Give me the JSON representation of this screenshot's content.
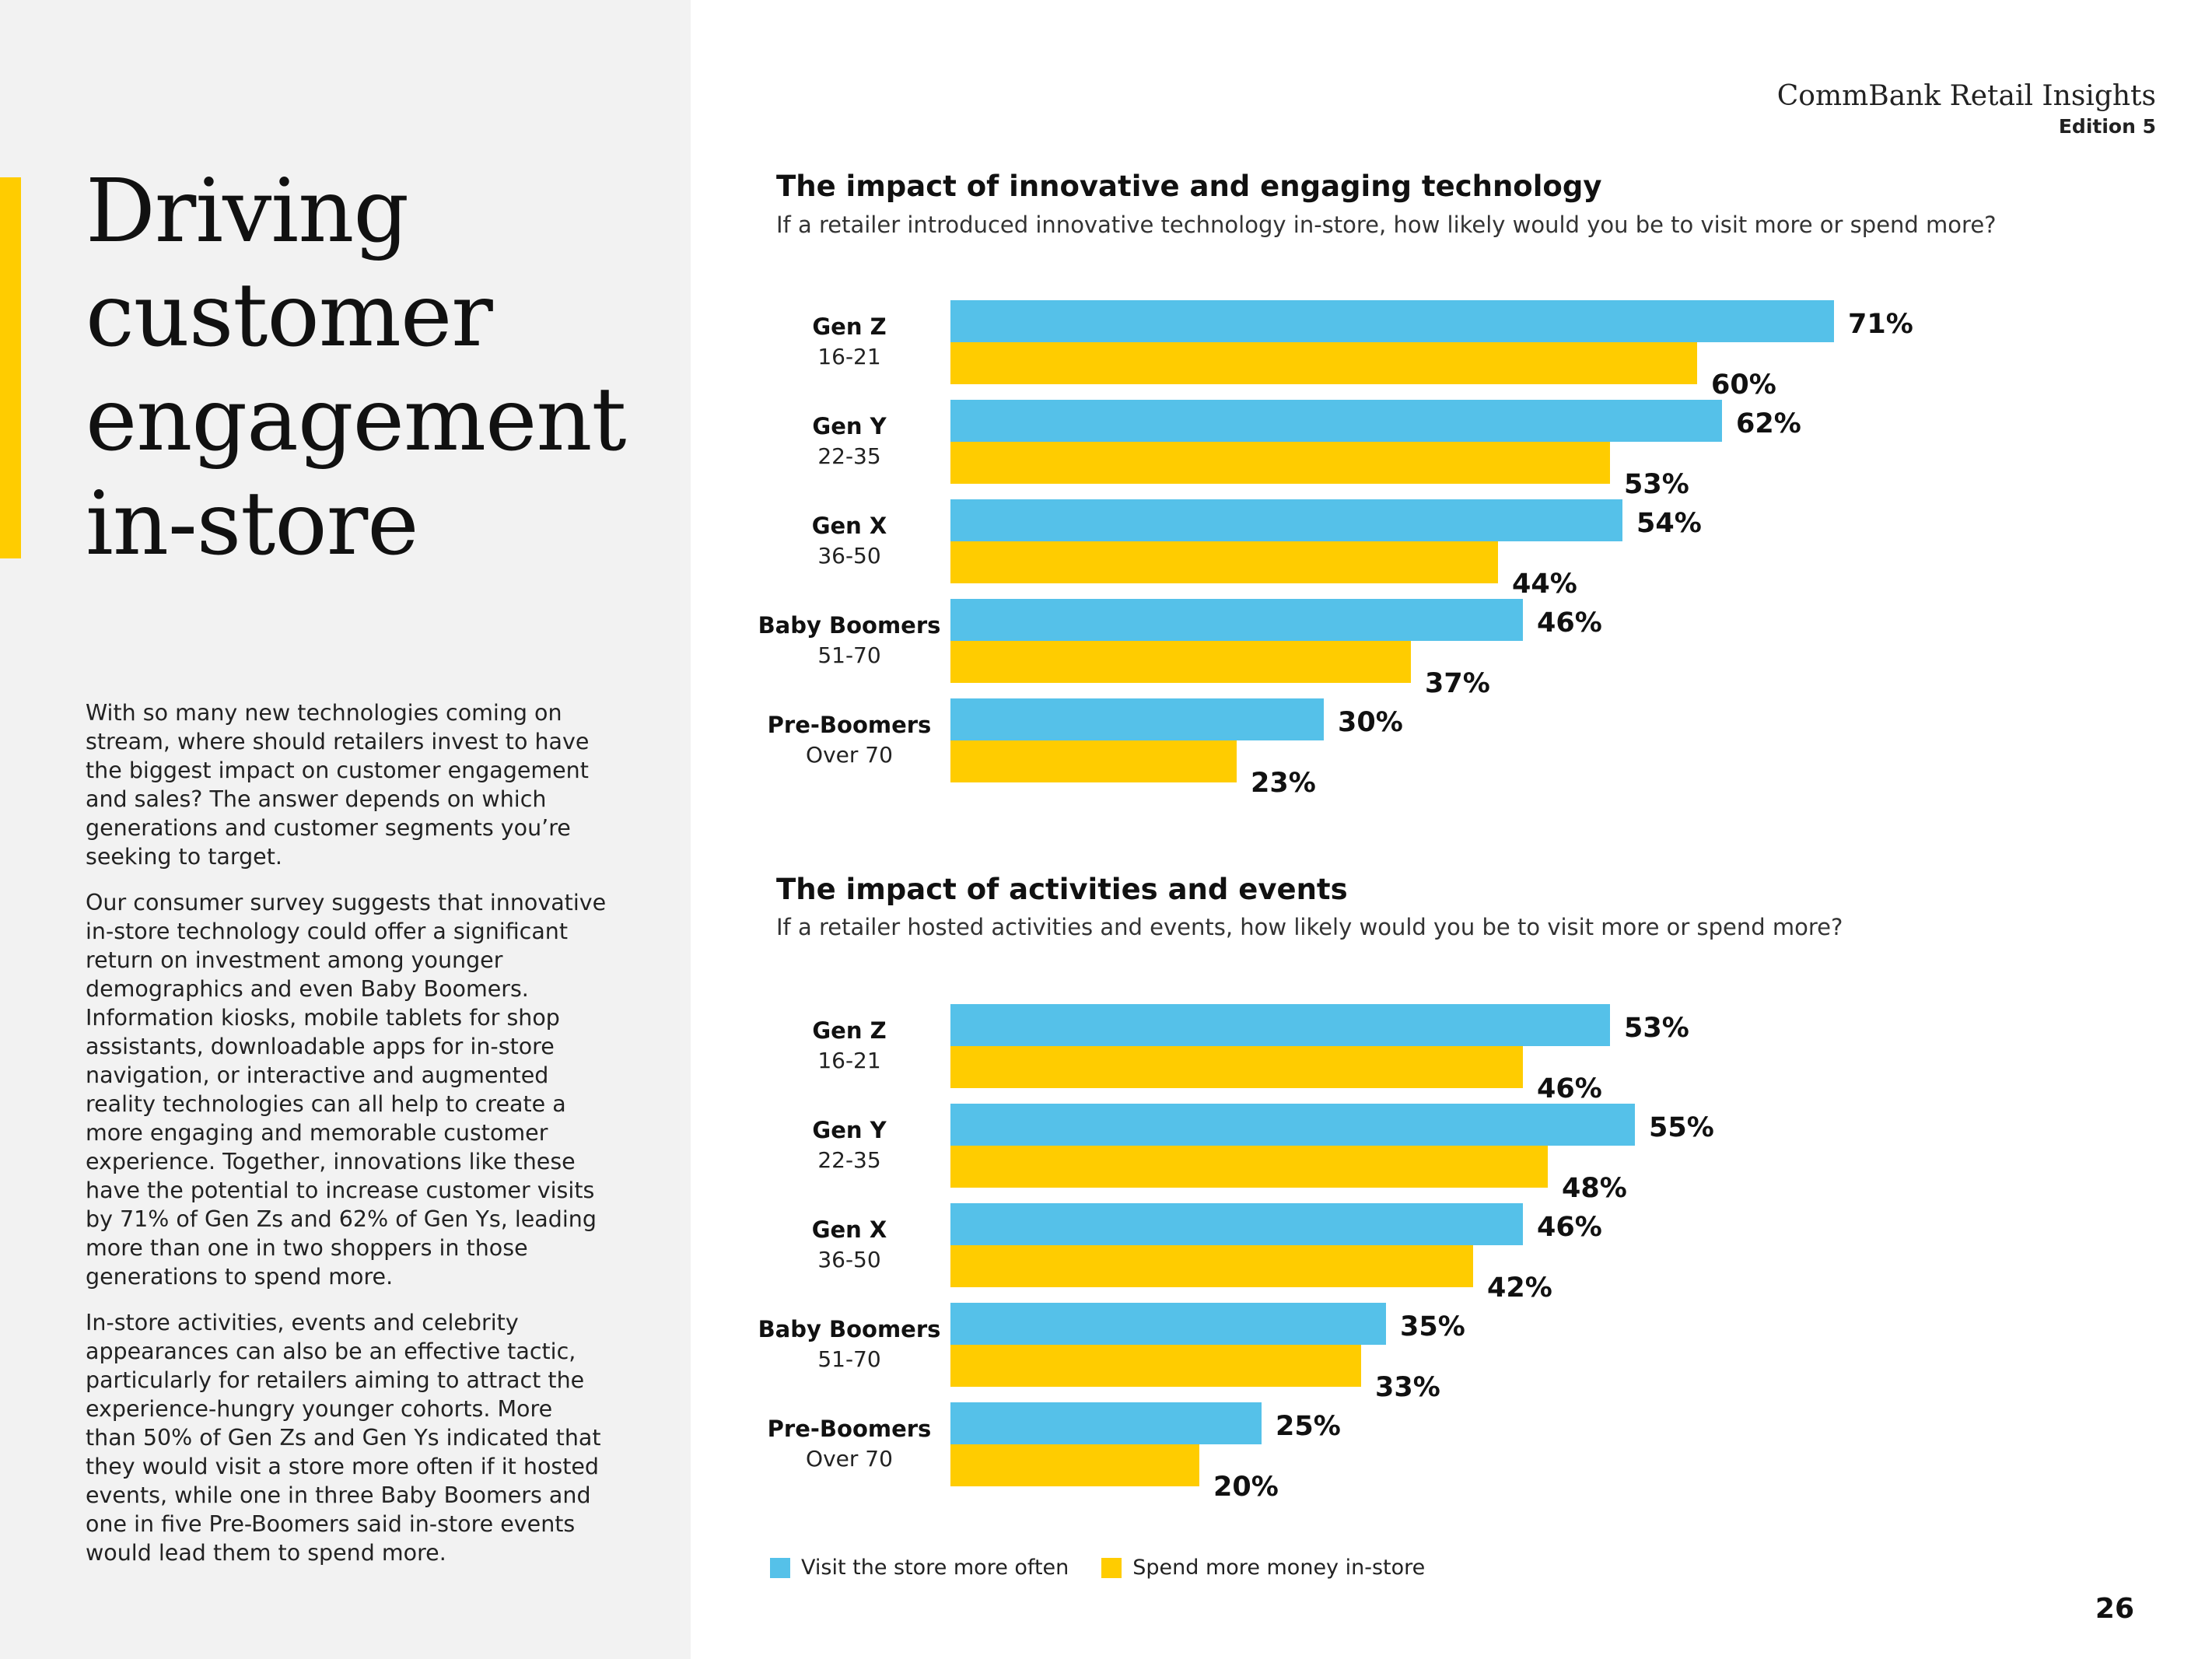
{
  "page": {
    "brand_name": "CommBank Retail Insights",
    "edition": "Edition 5",
    "page_number": "26",
    "title_lines": [
      "Driving",
      "customer",
      "engagement",
      "in-store"
    ],
    "paragraphs": [
      "With so many new technologies coming on stream, where should retailers invest to have the biggest impact on customer engagement and sales? The answer depends on which generations and customer segments you’re seeking to target.",
      "Our consumer survey suggests that innovative in-store technology could offer a significant return on investment among younger demographics and even Baby Boomers. Information kiosks, mobile tablets for shop assistants, downloadable apps for in-store navigation, or interactive and augmented reality technologies can all help to create a more engaging and memorable customer experience. Together, innovations like these have the potential to increase customer visits by 71% of Gen Zs and 62% of Gen Ys, leading more than one in two shoppers in those generations to spend more.",
      "In-store activities, events and celebrity appearances can also be an effective tactic, particularly for retailers aiming to attract the experience-hungry younger cohorts. More than 50% of Gen Zs and Gen Ys indicated that they would visit a store more often if it hosted events, while one in three Baby Boomers and one in five Pre-Boomers said in-store events would lead them to spend more."
    ],
    "colors": {
      "accent_yellow": "#ffcc00",
      "visit_blue": "#55c1e9",
      "spend_yellow": "#ffcc00",
      "panel_grey": "#f2f2f2"
    }
  },
  "legend": [
    {
      "label": "Visit the store more often",
      "color": "#55c1e9"
    },
    {
      "label": "Spend more money in-store",
      "color": "#ffcc00"
    }
  ],
  "chart_data": [
    {
      "type": "bar",
      "orientation": "horizontal",
      "title": "The impact of innovative and engaging technology",
      "subtitle": "If a retailer introduced innovative technology in-store, how likely would you be to visit more or spend more?",
      "categories": [
        {
          "name": "Gen Z",
          "range": "16-21"
        },
        {
          "name": "Gen Y",
          "range": "22-35"
        },
        {
          "name": "Gen X",
          "range": "36-50"
        },
        {
          "name": "Baby Boomers",
          "range": "51-70"
        },
        {
          "name": "Pre-Boomers",
          "range": "Over 70"
        }
      ],
      "series": [
        {
          "name": "Visit the store more often",
          "color": "#55c1e9",
          "values": [
            71,
            62,
            54,
            46,
            30
          ]
        },
        {
          "name": "Spend more money in-store",
          "color": "#ffcc00",
          "values": [
            60,
            53,
            44,
            37,
            23
          ]
        }
      ],
      "value_suffix": "%",
      "xlim": [
        0,
        100
      ],
      "grid": false
    },
    {
      "type": "bar",
      "orientation": "horizontal",
      "title": "The impact of activities and events",
      "subtitle": "If a retailer hosted activities and events, how likely would you be to visit more or spend more?",
      "categories": [
        {
          "name": "Gen Z",
          "range": "16-21"
        },
        {
          "name": "Gen Y",
          "range": "22-35"
        },
        {
          "name": "Gen X",
          "range": "36-50"
        },
        {
          "name": "Baby Boomers",
          "range": "51-70"
        },
        {
          "name": "Pre-Boomers",
          "range": "Over 70"
        }
      ],
      "series": [
        {
          "name": "Visit the store more often",
          "color": "#55c1e9",
          "values": [
            53,
            55,
            46,
            35,
            25
          ]
        },
        {
          "name": "Spend more money in-store",
          "color": "#ffcc00",
          "values": [
            46,
            48,
            42,
            33,
            20
          ]
        }
      ],
      "value_suffix": "%",
      "xlim": [
        0,
        100
      ],
      "grid": false
    }
  ]
}
